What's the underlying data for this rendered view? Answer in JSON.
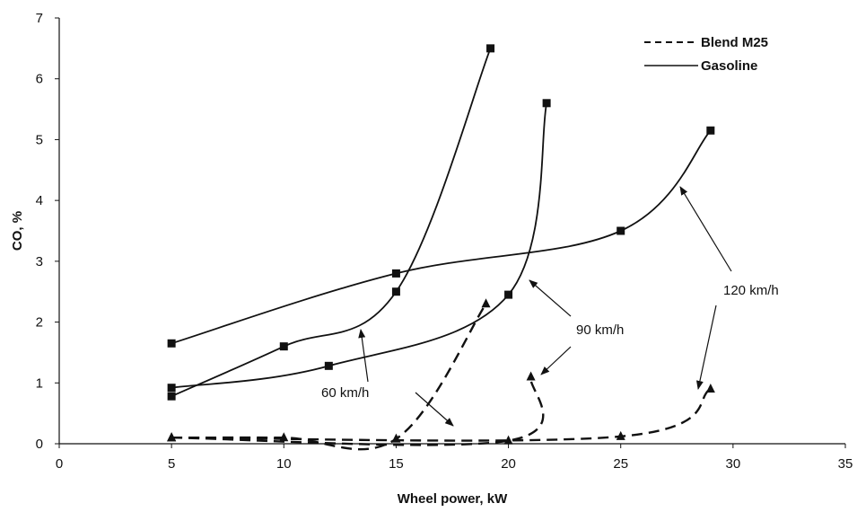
{
  "chart_data": {
    "type": "line",
    "xlabel": "Wheel power, kW",
    "ylabel": "CO, %",
    "xlim": [
      0,
      35
    ],
    "ylim": [
      0,
      7
    ],
    "xticks": [
      0,
      5,
      10,
      15,
      20,
      25,
      30,
      35
    ],
    "yticks": [
      0,
      1,
      2,
      3,
      4,
      5,
      6,
      7
    ],
    "grid": false,
    "legend_position": "top-right",
    "legend": [
      {
        "label": "Blend M25",
        "style": "dashed"
      },
      {
        "label": "Gasoline",
        "style": "solid"
      }
    ],
    "series": [
      {
        "fuel": "Gasoline",
        "speed": "60 km/h",
        "marker": "square",
        "style": "solid",
        "x": [
          5,
          10,
          15,
          19.2
        ],
        "y": [
          0.78,
          1.6,
          2.5,
          6.5
        ]
      },
      {
        "fuel": "Gasoline",
        "speed": "90 km/h",
        "marker": "square",
        "style": "solid",
        "x": [
          5,
          12,
          20,
          21.7
        ],
        "y": [
          0.92,
          1.28,
          2.45,
          5.6
        ]
      },
      {
        "fuel": "Gasoline",
        "speed": "120 km/h",
        "marker": "square",
        "style": "solid",
        "x": [
          5,
          15,
          25,
          29
        ],
        "y": [
          1.65,
          2.8,
          3.5,
          5.15
        ]
      },
      {
        "fuel": "Blend M25",
        "speed": "60 km/h",
        "marker": "triangle",
        "style": "dashed",
        "x": [
          5,
          10,
          15,
          19
        ],
        "y": [
          0.1,
          0.1,
          0.08,
          2.3
        ]
      },
      {
        "fuel": "Blend M25",
        "speed": "90 km/h",
        "marker": "triangle",
        "style": "dashed",
        "x": [
          5,
          20,
          21
        ],
        "y": [
          0.1,
          0.05,
          1.1
        ]
      },
      {
        "fuel": "Blend M25",
        "speed": "120 km/h",
        "marker": "triangle",
        "style": "dashed",
        "x": [
          5,
          25,
          29
        ],
        "y": [
          0.1,
          0.12,
          0.9
        ]
      }
    ],
    "annotations": [
      {
        "text": "60 km/h"
      },
      {
        "text": "90 km/h"
      },
      {
        "text": "120 km/h"
      }
    ],
    "colors": {
      "line": "#111111",
      "background": "#ffffff"
    }
  }
}
